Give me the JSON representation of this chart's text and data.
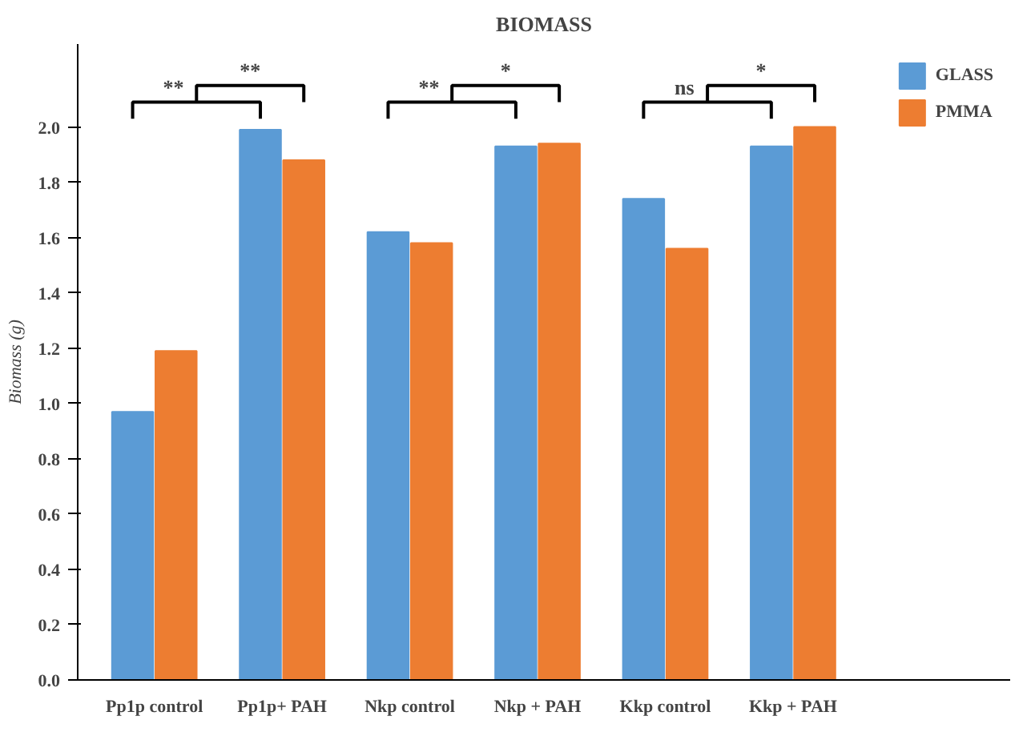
{
  "chart_data": {
    "type": "bar",
    "title": "BIOMASS",
    "ylabel": "Biomass (g)",
    "categories": [
      "Pp1p control",
      "Pp1p+ PAH",
      "Nkp control",
      "Nkp + PAH",
      "Kkp control",
      "Kkp + PAH"
    ],
    "series": [
      {
        "name": "GLASS",
        "color": "#5b9bd5",
        "values": [
          0.97,
          1.99,
          1.62,
          1.93,
          1.74,
          1.93
        ]
      },
      {
        "name": "PMMA",
        "color": "#ed7d31",
        "values": [
          1.19,
          1.88,
          1.58,
          1.94,
          1.56,
          2.0
        ]
      }
    ],
    "ylim": [
      0,
      2.3
    ],
    "yticks": [
      {
        "value": 0,
        "label": "0.0"
      },
      {
        "value": 0.2,
        "label": "0.2"
      },
      {
        "value": 0.4,
        "label": "0.4"
      },
      {
        "value": 0.6,
        "label": "0.6"
      },
      {
        "value": 0.8,
        "label": "0.8"
      },
      {
        "value": 1.0,
        "label": "1.0"
      },
      {
        "value": 1.2,
        "label": "1.2"
      },
      {
        "value": 1.4,
        "label": "1.4"
      },
      {
        "value": 1.6,
        "label": "1.6"
      },
      {
        "value": 1.8,
        "label": "1.8"
      },
      {
        "value": 2.0,
        "label": "2.0"
      }
    ],
    "annotations": [
      "**",
      "**",
      "**",
      "*",
      "ns",
      "*"
    ],
    "legend": "top right",
    "grid": false
  }
}
